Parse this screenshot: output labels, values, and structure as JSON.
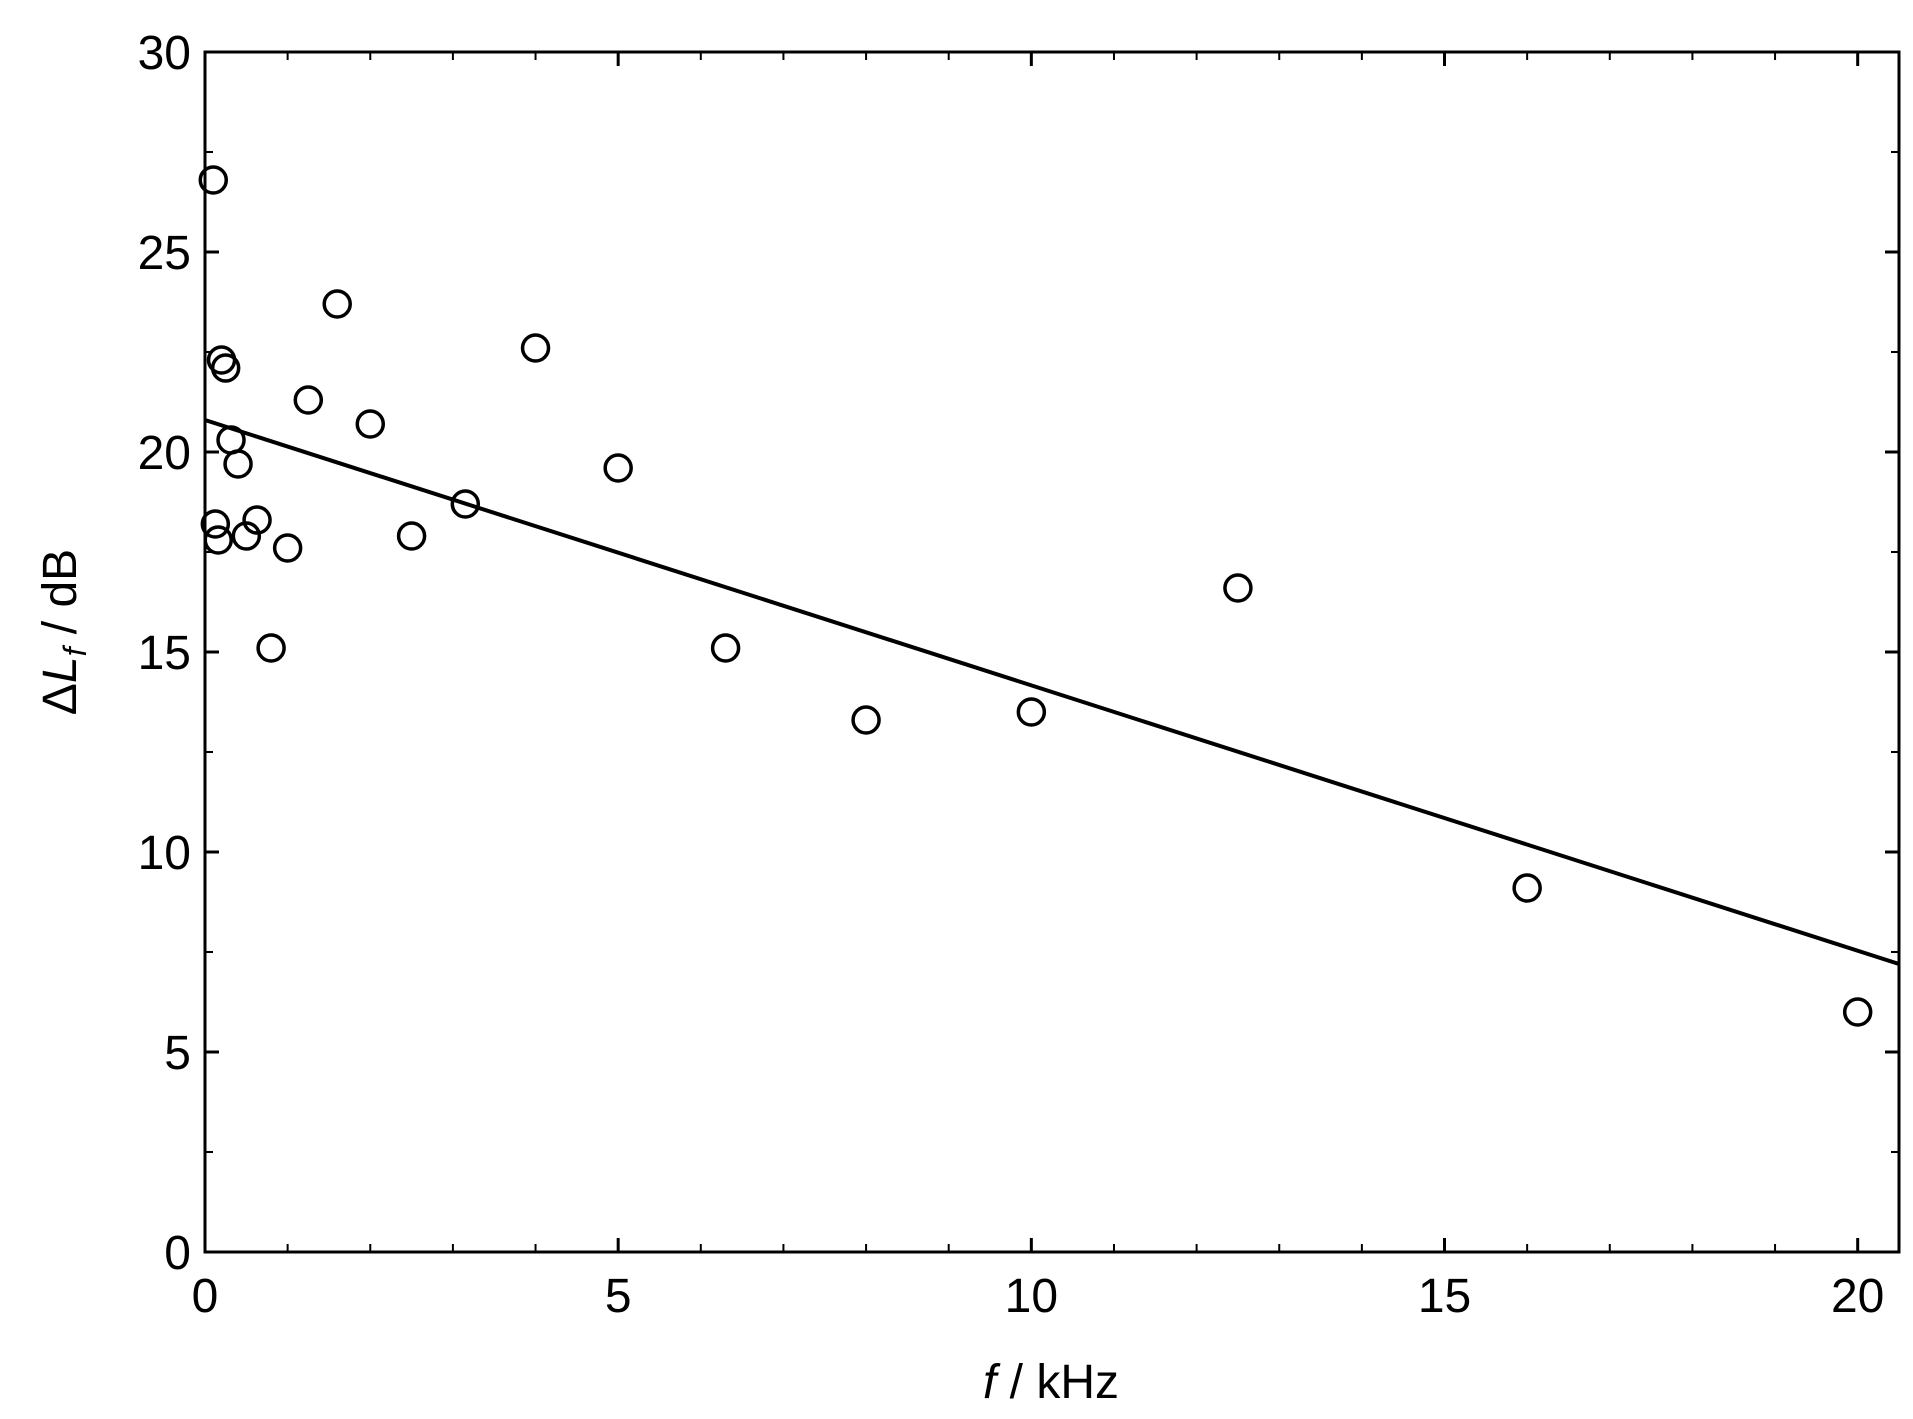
{
  "chart_data": {
    "type": "scatter",
    "xlabel": {
      "italic": "f",
      "rest": " / kHz"
    },
    "ylabel": {
      "delta": "Δ",
      "italic": "L",
      "sub": "f",
      "rest": " / dB"
    },
    "xlim": [
      0,
      20.5
    ],
    "ylim": [
      0,
      30
    ],
    "x_ticks": [
      0,
      5,
      10,
      15,
      20
    ],
    "y_ticks": [
      0,
      5,
      10,
      15,
      20,
      25,
      30
    ],
    "x_minor_step": 1,
    "y_minor_step": 2.5,
    "grid": false,
    "marker": "open-circle",
    "points": [
      {
        "x": 0.1,
        "y": 26.8
      },
      {
        "x": 0.125,
        "y": 18.2
      },
      {
        "x": 0.16,
        "y": 17.8
      },
      {
        "x": 0.2,
        "y": 22.3
      },
      {
        "x": 0.25,
        "y": 22.1
      },
      {
        "x": 0.315,
        "y": 20.3
      },
      {
        "x": 0.4,
        "y": 19.7
      },
      {
        "x": 0.5,
        "y": 17.9
      },
      {
        "x": 0.63,
        "y": 18.3
      },
      {
        "x": 0.8,
        "y": 15.1
      },
      {
        "x": 1.0,
        "y": 17.6
      },
      {
        "x": 1.25,
        "y": 21.3
      },
      {
        "x": 1.6,
        "y": 23.7
      },
      {
        "x": 2.0,
        "y": 20.7
      },
      {
        "x": 2.5,
        "y": 17.9
      },
      {
        "x": 3.15,
        "y": 18.7
      },
      {
        "x": 4.0,
        "y": 22.6
      },
      {
        "x": 5.0,
        "y": 19.6
      },
      {
        "x": 6.3,
        "y": 15.1
      },
      {
        "x": 8.0,
        "y": 13.3
      },
      {
        "x": 10.0,
        "y": 13.5
      },
      {
        "x": 12.5,
        "y": 16.6
      },
      {
        "x": 16.0,
        "y": 9.1
      },
      {
        "x": 20.0,
        "y": 6.0
      }
    ],
    "fit_line": {
      "x": [
        0,
        20.5
      ],
      "y": [
        20.8,
        7.2
      ]
    }
  }
}
